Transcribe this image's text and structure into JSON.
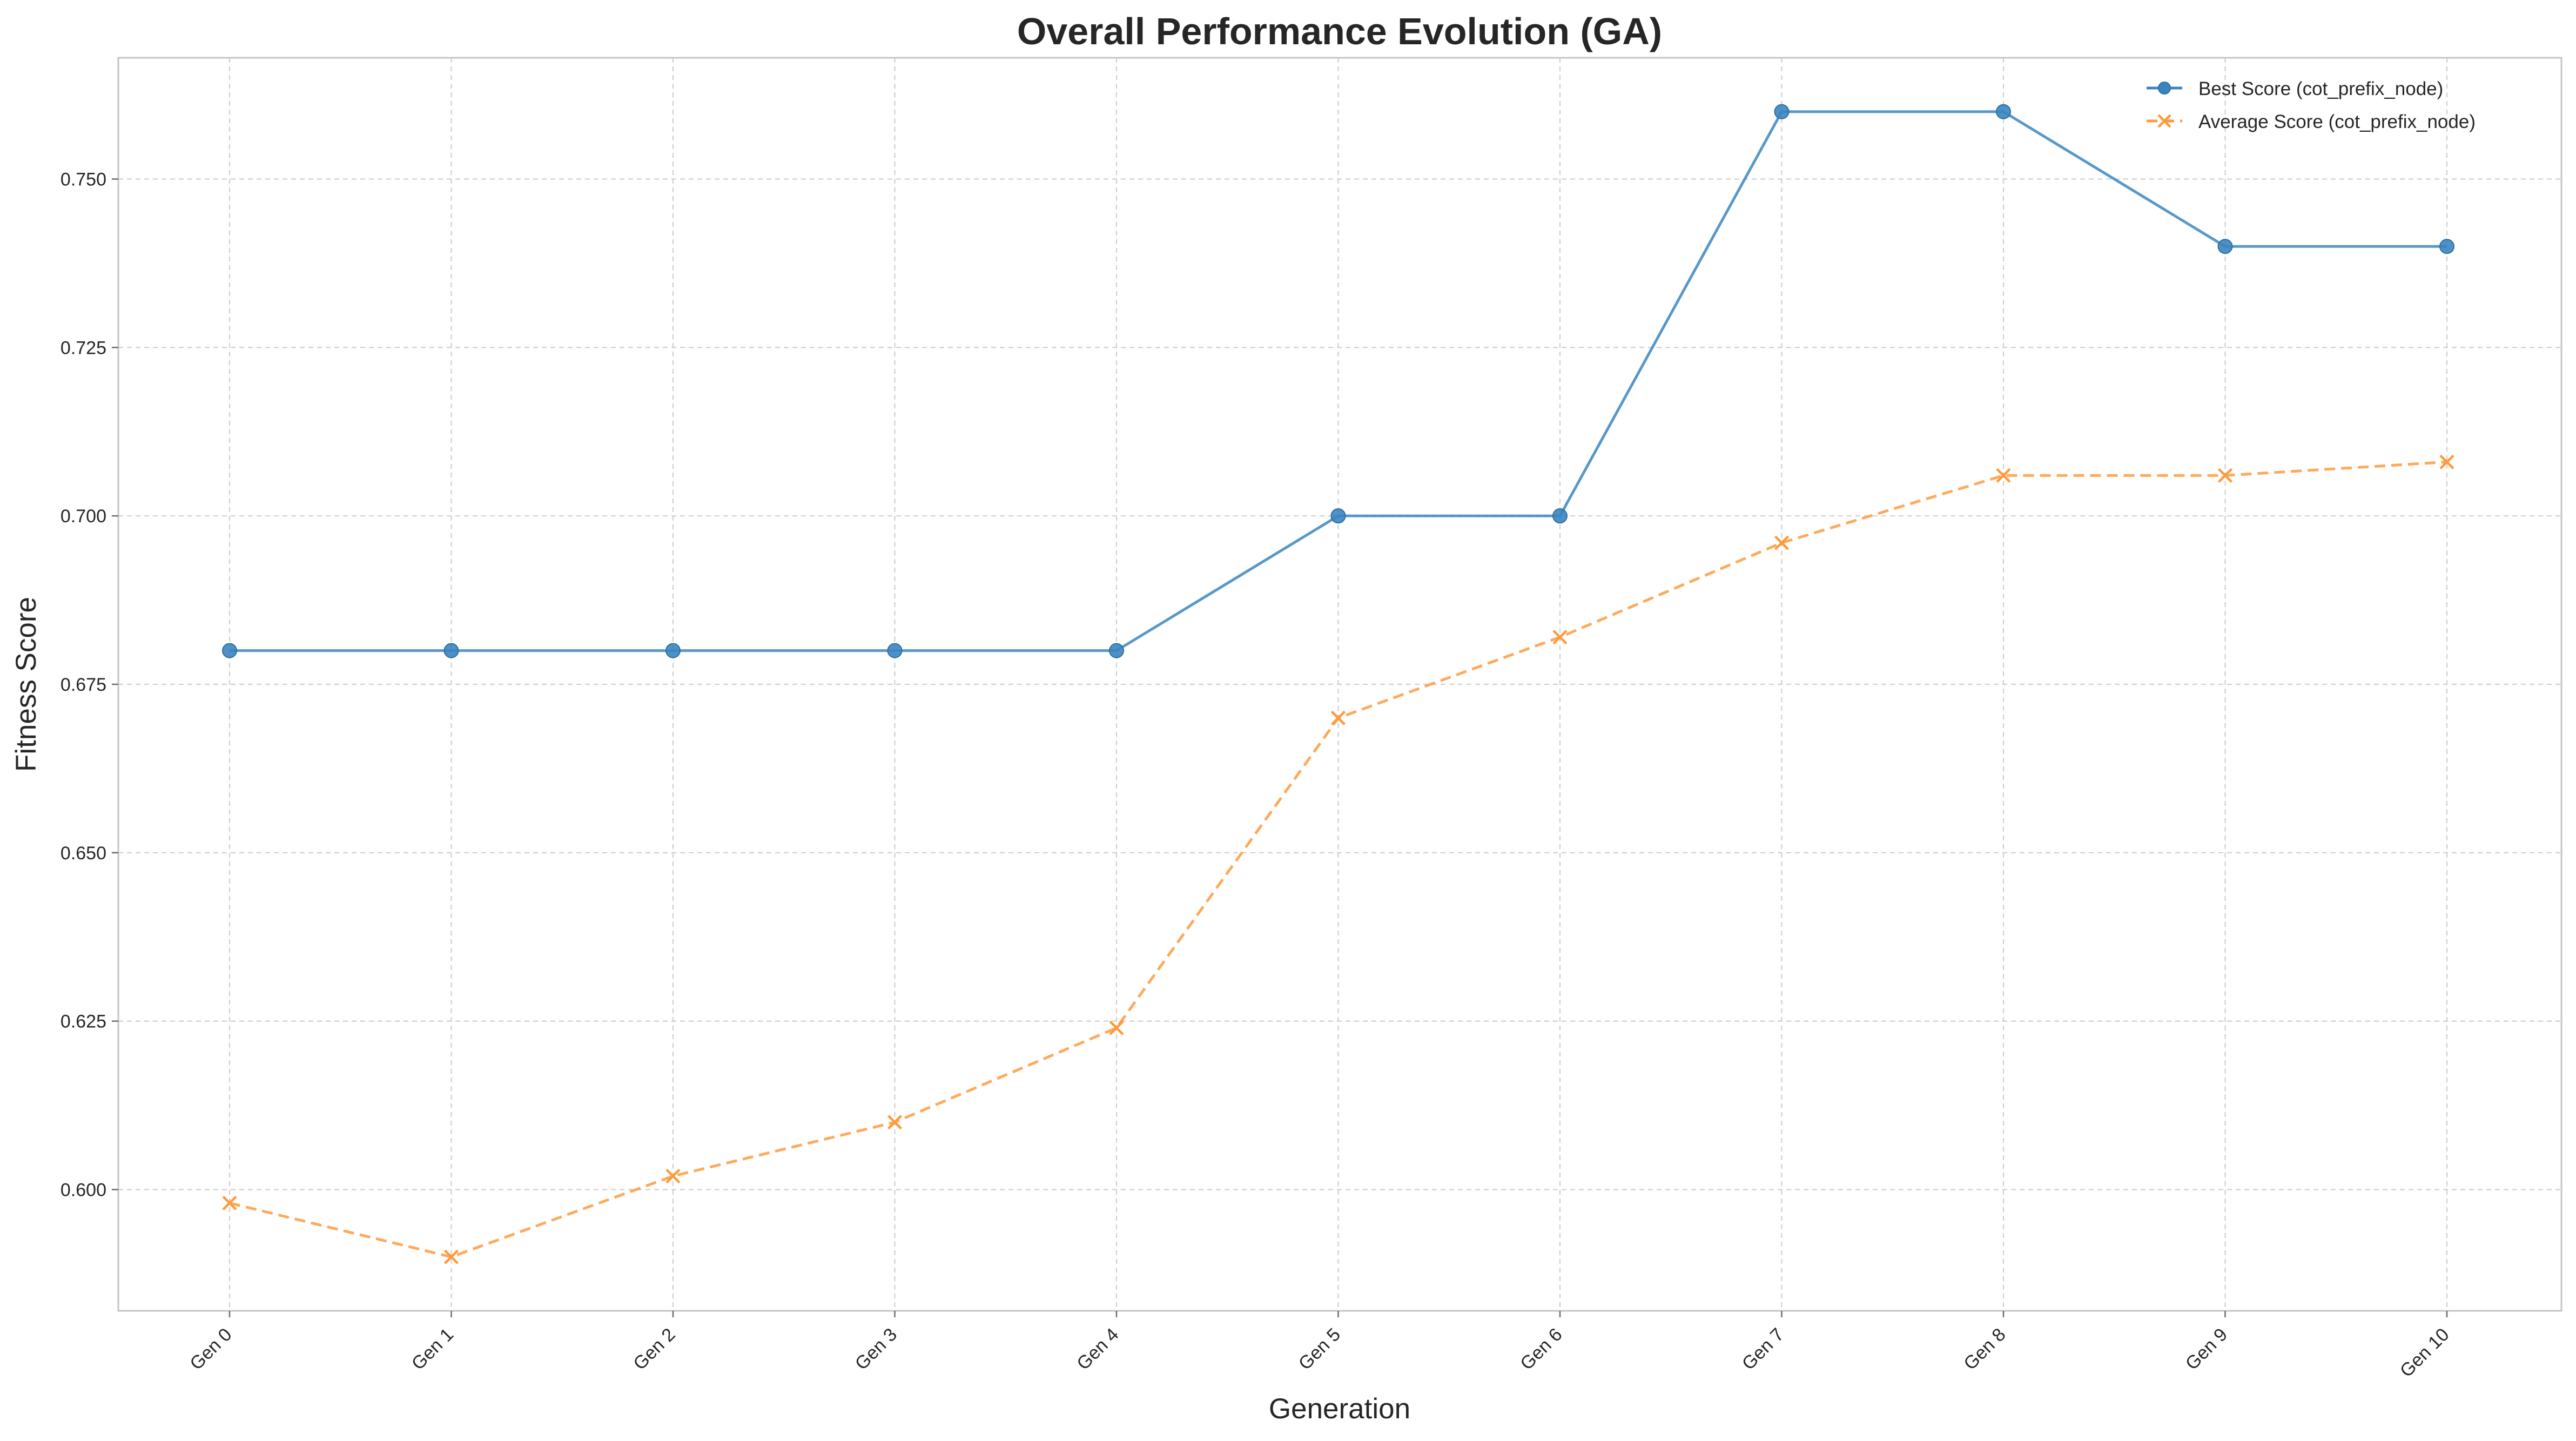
{
  "chart_data": {
    "type": "line",
    "title": "Overall Performance Evolution (GA)",
    "xlabel": "Generation",
    "ylabel": "Fitness Score",
    "categories": [
      "Gen 0",
      "Gen 1",
      "Gen 2",
      "Gen 3",
      "Gen 4",
      "Gen 5",
      "Gen 6",
      "Gen 7",
      "Gen 8",
      "Gen 9",
      "Gen 10"
    ],
    "y_ticks": [
      "0.600",
      "0.625",
      "0.650",
      "0.675",
      "0.700",
      "0.725",
      "0.750"
    ],
    "y_tick_values": [
      0.6,
      0.625,
      0.65,
      0.675,
      0.7,
      0.725,
      0.75
    ],
    "ylim": [
      0.582,
      0.768
    ],
    "grid": true,
    "legend_position": "top-right",
    "series": [
      {
        "name": "Best Score (cot_prefix_node)",
        "values": [
          0.68,
          0.68,
          0.68,
          0.68,
          0.68,
          0.7,
          0.7,
          0.76,
          0.76,
          0.74,
          0.74
        ],
        "color": "#3a85c0",
        "line_style": "solid",
        "marker": "circle"
      },
      {
        "name": "Average Score (cot_prefix_node)",
        "values": [
          0.598,
          0.59,
          0.602,
          0.61,
          0.624,
          0.67,
          0.682,
          0.696,
          0.706,
          0.706,
          0.708
        ],
        "color": "#ff9a3c",
        "line_style": "dashed",
        "marker": "x"
      }
    ]
  }
}
